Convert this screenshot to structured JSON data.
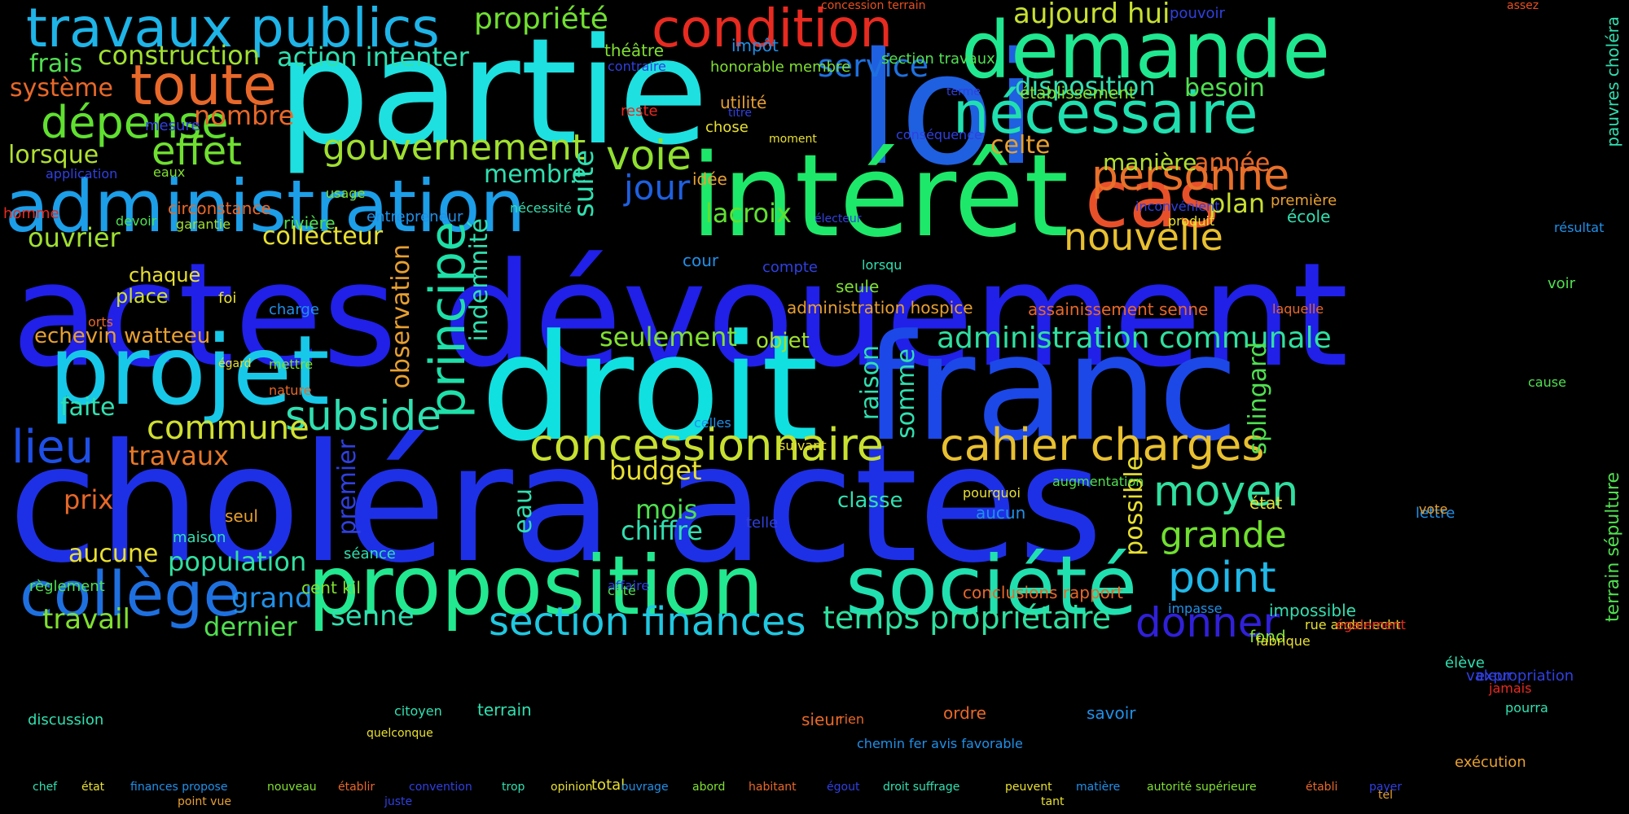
{
  "words": [
    {
      "text": "actes dévouement",
      "color": "#2020e8"
    },
    {
      "text": "choléra actes",
      "color": "#1e30e6"
    },
    {
      "text": "partie",
      "color": "#1ee0e0"
    },
    {
      "text": "loi",
      "color": "#1f60e0"
    },
    {
      "text": "droit",
      "color": "#10e0e0"
    },
    {
      "text": "franc",
      "color": "#1c48e8"
    },
    {
      "text": "intérêt",
      "color": "#1ee86a"
    },
    {
      "text": "demande",
      "color": "#20e890"
    },
    {
      "text": "administration",
      "color": "#1c9ee8"
    },
    {
      "text": "projet",
      "color": "#18c8e8"
    },
    {
      "text": "proposition",
      "color": "#22e890"
    },
    {
      "text": "société",
      "color": "#20e0b0"
    },
    {
      "text": "cas",
      "color": "#e8502a"
    },
    {
      "text": "condition",
      "color": "#e82a20"
    },
    {
      "text": "travaux publics",
      "color": "#1eb4e8"
    },
    {
      "text": "toute",
      "color": "#e8682a"
    },
    {
      "text": "nécessaire",
      "color": "#20e0b0"
    },
    {
      "text": "personne",
      "color": "#e8702a"
    },
    {
      "text": "principe",
      "color": "#1ee0a8"
    },
    {
      "text": "dépense",
      "color": "#60e030"
    },
    {
      "text": "effet",
      "color": "#70e030"
    },
    {
      "text": "gouvernement",
      "color": "#a0e030"
    },
    {
      "text": "voie",
      "color": "#90e030"
    },
    {
      "text": "jour",
      "color": "#1e60e0"
    },
    {
      "text": "lacroix",
      "color": "#60e030"
    },
    {
      "text": "nouvelle",
      "color": "#e8c030"
    },
    {
      "text": "collège",
      "color": "#1e70e0"
    },
    {
      "text": "concessionnaire",
      "color": "#c8e030"
    },
    {
      "text": "cahier charges",
      "color": "#e8c030"
    },
    {
      "text": "section finances",
      "color": "#20c8e0"
    },
    {
      "text": "temps propriétaire",
      "color": "#30e0a0"
    },
    {
      "text": "donner",
      "color": "#3020d8"
    },
    {
      "text": "point",
      "color": "#20b8e8"
    },
    {
      "text": "moyen",
      "color": "#30e0a0"
    },
    {
      "text": "grande",
      "color": "#70e030"
    },
    {
      "text": "subside",
      "color": "#30e0b0"
    },
    {
      "text": "commune",
      "color": "#d0e030"
    },
    {
      "text": "lieu",
      "color": "#1e50e8"
    },
    {
      "text": "administration communale",
      "color": "#30e0a0"
    },
    {
      "text": "propriété",
      "color": "#70e030"
    },
    {
      "text": "service",
      "color": "#1e70e0"
    },
    {
      "text": "construction",
      "color": "#a0e030"
    },
    {
      "text": "action intenter",
      "color": "#30e0b0"
    },
    {
      "text": "aujourd hui",
      "color": "#c8e030"
    },
    {
      "text": "disposition",
      "color": "#30e0b0"
    },
    {
      "text": "besoin",
      "color": "#50e050"
    },
    {
      "text": "frais",
      "color": "#50e050"
    },
    {
      "text": "système",
      "color": "#e86828"
    },
    {
      "text": "nombre",
      "color": "#e86828"
    },
    {
      "text": "lorsque",
      "color": "#b0e030"
    },
    {
      "text": "celte",
      "color": "#e8a030"
    },
    {
      "text": "année",
      "color": "#e86828"
    },
    {
      "text": "manière",
      "color": "#b0e030"
    },
    {
      "text": "plan",
      "color": "#c8e030"
    },
    {
      "text": "membre",
      "color": "#30e0b0"
    },
    {
      "text": "suite",
      "color": "#30e0b0"
    },
    {
      "text": "ouvrier",
      "color": "#a0e030"
    },
    {
      "text": "collecteur",
      "color": "#e8e030"
    },
    {
      "text": "chaque",
      "color": "#e8e030"
    },
    {
      "text": "place",
      "color": "#d0e030"
    },
    {
      "text": "echevin watteeu",
      "color": "#e8a030"
    },
    {
      "text": "seulement",
      "color": "#80e030"
    },
    {
      "text": "objet",
      "color": "#a0e030"
    },
    {
      "text": "faite",
      "color": "#30e0b0"
    },
    {
      "text": "travaux",
      "color": "#e87828"
    },
    {
      "text": "prix",
      "color": "#e86828"
    },
    {
      "text": "aucune",
      "color": "#e8e030"
    },
    {
      "text": "population",
      "color": "#30e0a0"
    },
    {
      "text": "grand",
      "color": "#2090e8"
    },
    {
      "text": "travail",
      "color": "#80e030"
    },
    {
      "text": "dernier",
      "color": "#50e050"
    },
    {
      "text": "senne",
      "color": "#30e0b0"
    },
    {
      "text": "budget",
      "color": "#e8e030"
    },
    {
      "text": "mois",
      "color": "#50e050"
    },
    {
      "text": "chiffre",
      "color": "#30e0b0"
    },
    {
      "text": "classe",
      "color": "#30e0b0"
    },
    {
      "text": "splingard",
      "color": "#50e050"
    },
    {
      "text": "possible",
      "color": "#e8e030"
    },
    {
      "text": "somme",
      "color": "#30e0b0"
    },
    {
      "text": "raison",
      "color": "#30e0b0"
    },
    {
      "text": "observation",
      "color": "#e8a030"
    },
    {
      "text": "indemnité",
      "color": "#30e0b0"
    },
    {
      "text": "eau",
      "color": "#30e0b0"
    },
    {
      "text": "premier",
      "color": "#3040e0"
    },
    {
      "text": "terrain sépulture",
      "color": "#50e050"
    },
    {
      "text": "pauvres choléra",
      "color": "#30e0b0"
    }
  ],
  "small_words": [
    "concession terrain",
    "assez",
    "pouvoir",
    "théâtre",
    "impôt",
    "contraire",
    "honorable membre",
    "section travaux",
    "chef",
    "établissement",
    "utilité",
    "titre",
    "reste",
    "chose",
    "moment",
    "état",
    "conséquence",
    "terme",
    "mesure",
    "application",
    "eaux",
    "usage",
    "circonstance",
    "garantie",
    "rivière",
    "devoir",
    "homme",
    "entrepreneur",
    "nécessité",
    "idée",
    "électeur",
    "inconvénient",
    "produit",
    "première",
    "école",
    "résultat",
    "cour",
    "compte",
    "lorsqu",
    "seule",
    "voir",
    "foi",
    "charge",
    "administration hospice",
    "assainissement senne",
    "laquelle",
    "orts",
    "finances propose",
    "égard",
    "mettre",
    "nature",
    "nouveau",
    "établir",
    "convention",
    "celles",
    "suivant",
    "trop",
    "cause",
    "opinion",
    "ouvrage",
    "maison",
    "seul",
    "pourquoi",
    "aucun",
    "telle",
    "augmentation",
    "état",
    "lettre",
    "vote",
    "séance",
    "règlement",
    "cent kil",
    "affaire",
    "côté",
    "conclusions rapport",
    "impasse",
    "impossible",
    "rue anderlecht",
    "également",
    "fond",
    "fabrique",
    "élève",
    "valeur",
    "expropriation",
    "jamais",
    "discussion",
    "citoyen",
    "terrain",
    "sieur",
    "rien",
    "ordre",
    "savoir",
    "pourra",
    "quelconque",
    "chemin fer avis favorable",
    "abord",
    "total",
    "exécution",
    "habitant",
    "point vue",
    "juste",
    "tant",
    "tel",
    "égout",
    "droit suffrage",
    "peuvent",
    "matière",
    "autorité supérieure",
    "établi",
    "payer"
  ]
}
